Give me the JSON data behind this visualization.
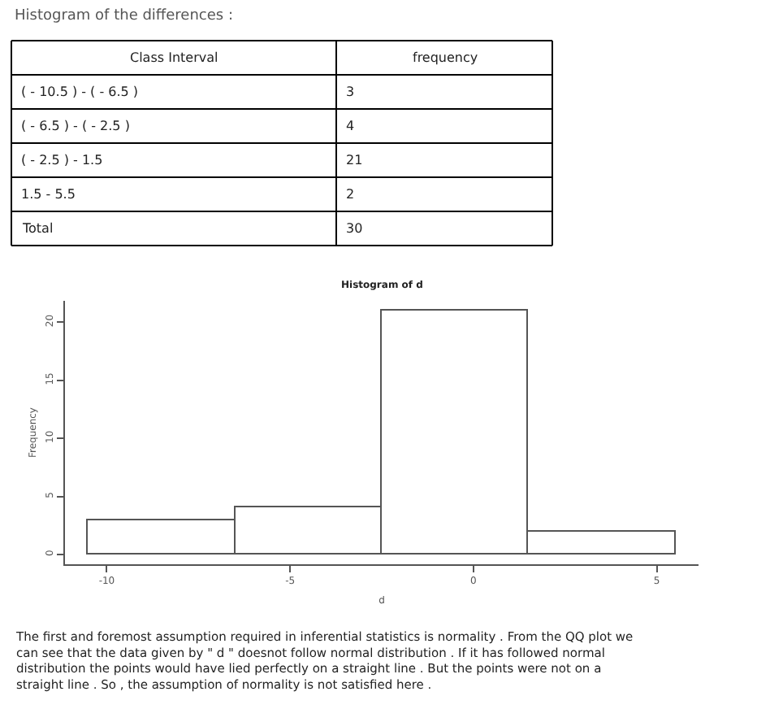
{
  "chart_data": [
    {
      "type": "other",
      "title": "Histogram of the differences :",
      "annotations": [
        "Class Interval",
        "frequency",
        "( - 10.5 ) - ( - 6.5 )",
        "3",
        "( - 6.5 ) - ( - 2.5 )",
        "4",
        "( - 2.5 ) - 1.5",
        "21",
        "1.5 - 5.5",
        "2",
        "Total",
        "30"
      ]
    },
    {
      "type": "histogram",
      "title": "Histogram of d",
      "xlabel": "d",
      "ylabel": "Frequency",
      "bins": [
        -10.5,
        -6.5,
        -2.5,
        1.5,
        5.5
      ],
      "values": [
        3,
        4,
        21,
        2
      ],
      "color": "#ffffff",
      "xlim": [
        -11.14,
        6.14
      ],
      "xticks": [
        -10,
        -5,
        0,
        5
      ],
      "ylim": [
        -0.84,
        21.84
      ],
      "yticks": [
        0,
        5,
        10,
        15,
        20
      ],
      "annotations": [
        "The first and foremost assumption required in inferential statistics is normality . From the QQ plot we can see that the data given by \" d \" doesnot follow normal distribution . If it has followed normal distribution the points would have lied perfectly on a straight line . But the points were not on a straight line . So , the assumption of normality is not satisfied here ."
      ]
    }
  ]
}
